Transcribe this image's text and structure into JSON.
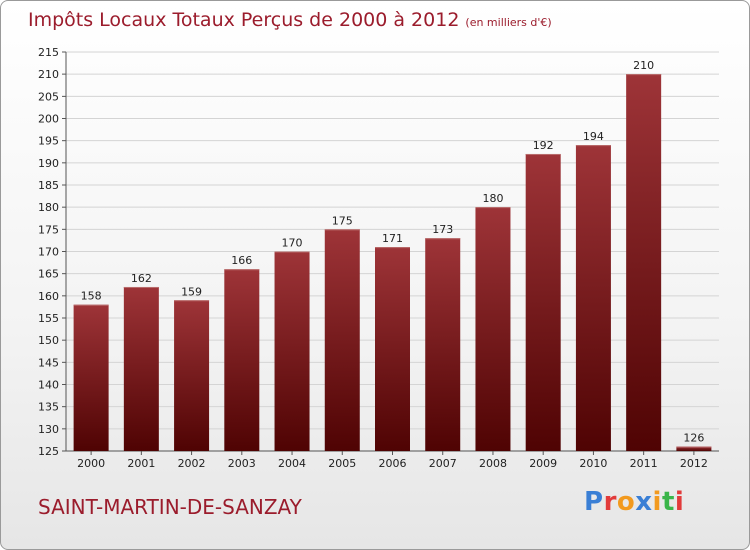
{
  "chart_data": {
    "type": "bar",
    "title": "Impôts Locaux Totaux Perçus de 2000 à 2012",
    "subtitle": "(en milliers d'€)",
    "categories": [
      "2000",
      "2001",
      "2002",
      "2003",
      "2004",
      "2005",
      "2006",
      "2007",
      "2008",
      "2009",
      "2010",
      "2011",
      "2012"
    ],
    "values": [
      158,
      162,
      159,
      166,
      170,
      175,
      171,
      173,
      180,
      192,
      194,
      210,
      126
    ],
    "ylim": [
      125,
      215
    ],
    "yticks": [
      125,
      130,
      135,
      140,
      145,
      150,
      155,
      160,
      165,
      170,
      175,
      180,
      185,
      190,
      195,
      200,
      205,
      210,
      215
    ],
    "grid": true,
    "bar_color": "#8b1a1a",
    "xlabel": "",
    "ylabel": ""
  },
  "location": "SAINT-MARTIN-DE-SANZAY",
  "logo": {
    "letters": [
      "P",
      "r",
      "o",
      "x",
      "i",
      "t",
      "i"
    ],
    "colors": [
      "#3a7fd5",
      "#e23b3b",
      "#f29a1f",
      "#3a7fd5",
      "#f29a1f",
      "#3ab54a",
      "#e23b3b"
    ]
  },
  "colors": {
    "title": "#9b1c2c",
    "accent": "#9b1c2c"
  }
}
